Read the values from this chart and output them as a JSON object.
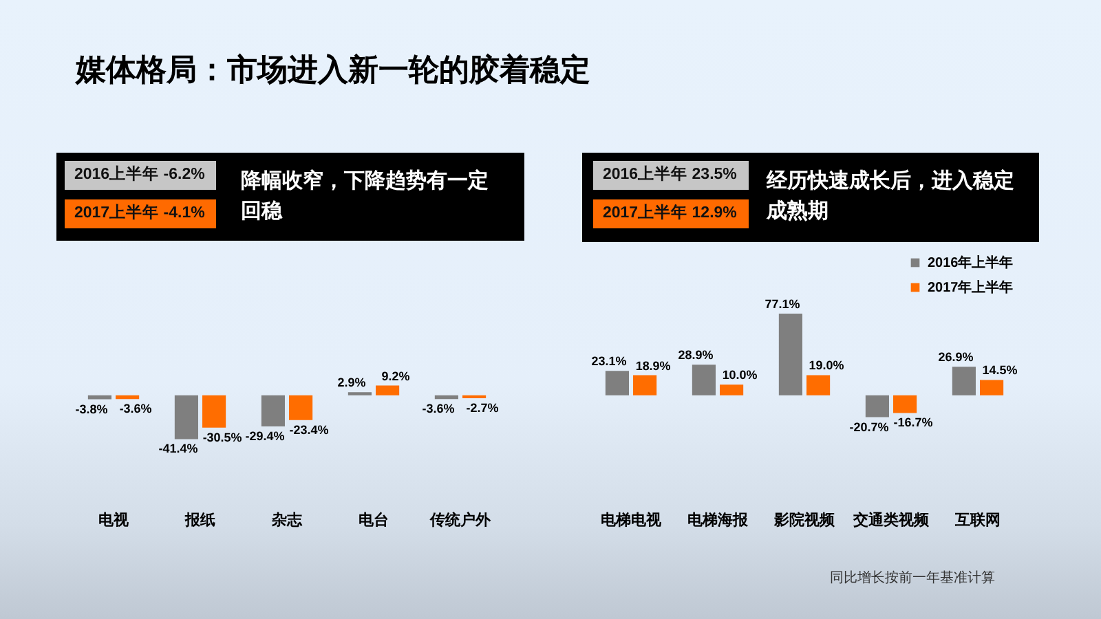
{
  "chart_data": [
    {
      "type": "bar",
      "title": "媒体格局：市场进入新一轮的胶着稳定",
      "subtitle": "降幅收窄，下降趋势有一定回稳",
      "annotations": [
        "2016上半年 -6.2%",
        "2017上半年 -4.1%"
      ],
      "categories": [
        "电视",
        "报纸",
        "杂志",
        "电台",
        "传统户外"
      ],
      "series": [
        {
          "color": "#7f7f7f",
          "values": [
            -3.8,
            -41.4,
            -29.4,
            2.9,
            -3.6
          ],
          "value_labels": [
            "-3.8%",
            "-41.4%",
            "-29.4%",
            "2.9%",
            "-3.6%"
          ]
        },
        {
          "color": "#ff6d00",
          "values": [
            -3.6,
            -30.5,
            -23.4,
            9.2,
            -2.7
          ],
          "value_labels": [
            "-3.6%",
            "-30.5%",
            "-23.4%",
            "9.2%",
            "-2.7%"
          ]
        }
      ]
    },
    {
      "type": "bar",
      "subtitle": "经历快速成长后，进入稳定成熟期",
      "annotations": [
        "2016上半年 23.5%",
        "2017上半年 12.9%",
        "同比增长按前一年基准计算"
      ],
      "categories": [
        "电梯电视",
        "电梯海报",
        "影院视频",
        "交通类视频",
        "互联网"
      ],
      "series": [
        {
          "name": "2016年上半年",
          "color": "#7f7f7f",
          "values": [
            23.1,
            28.9,
            77.1,
            -20.7,
            26.9
          ],
          "value_labels": [
            "23.1%",
            "28.9%",
            "77.1%",
            "-20.7%",
            "26.9%"
          ]
        },
        {
          "name": "2017年上半年",
          "color": "#ff6d00",
          "values": [
            18.9,
            10.0,
            19.0,
            -16.7,
            14.5
          ],
          "value_labels": [
            "18.9%",
            "10.0%",
            "19.0%",
            "-16.7%",
            "14.5%"
          ]
        }
      ],
      "legend": "top right"
    }
  ]
}
